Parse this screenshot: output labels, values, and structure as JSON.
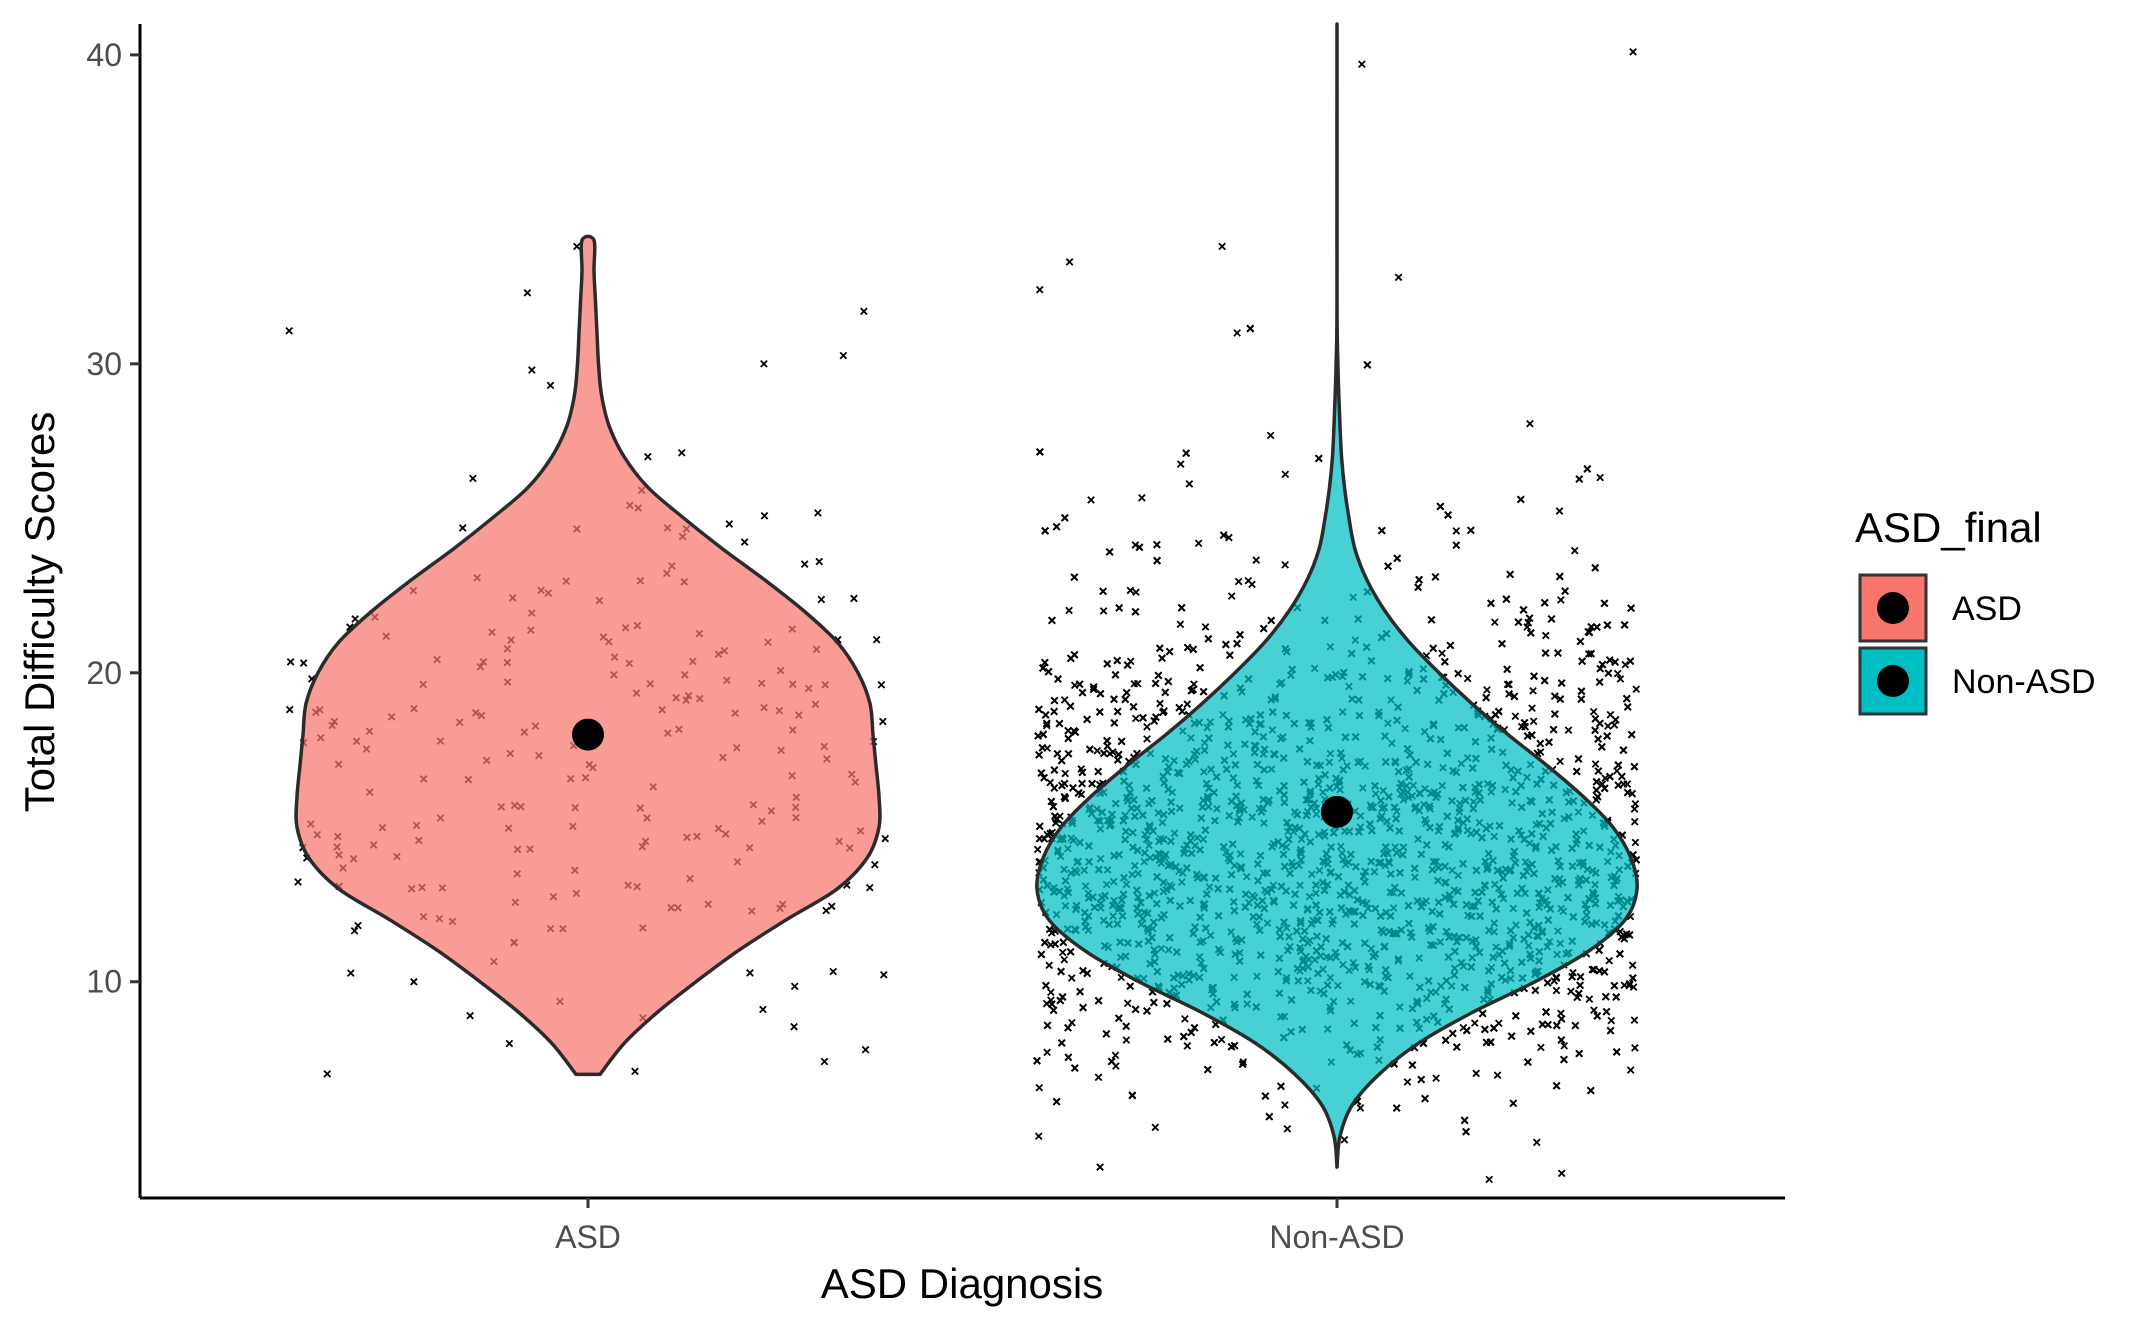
{
  "chart_data": {
    "type": "violin",
    "title": "",
    "xlabel": "ASD Diagnosis",
    "ylabel": "Total Difficulty Scores",
    "ylim": [
      3,
      41
    ],
    "yticks": [
      10,
      20,
      30,
      40
    ],
    "categories": [
      "ASD",
      "Non-ASD"
    ],
    "grid": false,
    "legend": {
      "title": "ASD_final",
      "placement": "right",
      "items": [
        {
          "label": "ASD",
          "color": "#F8766D"
        },
        {
          "label": "Non-ASD",
          "color": "#00BFC4"
        }
      ]
    },
    "series": [
      {
        "category": "ASD",
        "fill": "#F8766D",
        "mean": 18,
        "range": [
          7,
          34
        ],
        "density": [
          [
            7,
            0.04
          ],
          [
            8,
            0.12
          ],
          [
            9,
            0.23
          ],
          [
            10,
            0.36
          ],
          [
            11,
            0.5
          ],
          [
            12,
            0.66
          ],
          [
            13,
            0.83
          ],
          [
            14,
            0.93
          ],
          [
            15,
            0.97
          ],
          [
            16,
            0.97
          ],
          [
            17,
            0.96
          ],
          [
            18,
            0.95
          ],
          [
            19,
            0.94
          ],
          [
            20,
            0.9
          ],
          [
            21,
            0.83
          ],
          [
            22,
            0.72
          ],
          [
            23,
            0.59
          ],
          [
            24,
            0.45
          ],
          [
            25,
            0.32
          ],
          [
            26,
            0.2
          ],
          [
            27,
            0.12
          ],
          [
            28,
            0.07
          ],
          [
            29,
            0.045
          ],
          [
            30,
            0.035
          ],
          [
            31,
            0.03
          ],
          [
            32,
            0.025
          ],
          [
            33,
            0.02
          ],
          [
            34,
            0.02
          ]
        ],
        "approx_points": 220,
        "outliers": [
          7.8,
          7.1,
          8.0,
          8.9,
          33.8,
          32.3,
          31.7,
          30.0,
          29.8,
          29.3
        ]
      },
      {
        "category": "Non-ASD",
        "fill": "#00BFC4",
        "mean": 15.5,
        "range": [
          4,
          40
        ],
        "density": [
          [
            4,
            0.0
          ],
          [
            5,
            0.01
          ],
          [
            6,
            0.05
          ],
          [
            7,
            0.14
          ],
          [
            8,
            0.27
          ],
          [
            9,
            0.45
          ],
          [
            10,
            0.66
          ],
          [
            11,
            0.84
          ],
          [
            12,
            0.96
          ],
          [
            13,
            1.0
          ],
          [
            14,
            0.98
          ],
          [
            15,
            0.92
          ],
          [
            16,
            0.82
          ],
          [
            17,
            0.7
          ],
          [
            18,
            0.57
          ],
          [
            19,
            0.45
          ],
          [
            20,
            0.34
          ],
          [
            21,
            0.24
          ],
          [
            22,
            0.16
          ],
          [
            23,
            0.1
          ],
          [
            24,
            0.06
          ],
          [
            25,
            0.04
          ],
          [
            26,
            0.025
          ],
          [
            27,
            0.015
          ],
          [
            28,
            0.01
          ],
          [
            29,
            0.006
          ],
          [
            30,
            0.003
          ],
          [
            32,
            0.0
          ],
          [
            40,
            0.0
          ]
        ],
        "approx_points": 4500,
        "outliers": [
          40.1,
          39.7,
          33.8,
          33.3,
          32.8,
          32.4,
          31.0,
          5.0,
          4.8,
          4.0,
          3.8,
          3.6
        ]
      }
    ]
  }
}
